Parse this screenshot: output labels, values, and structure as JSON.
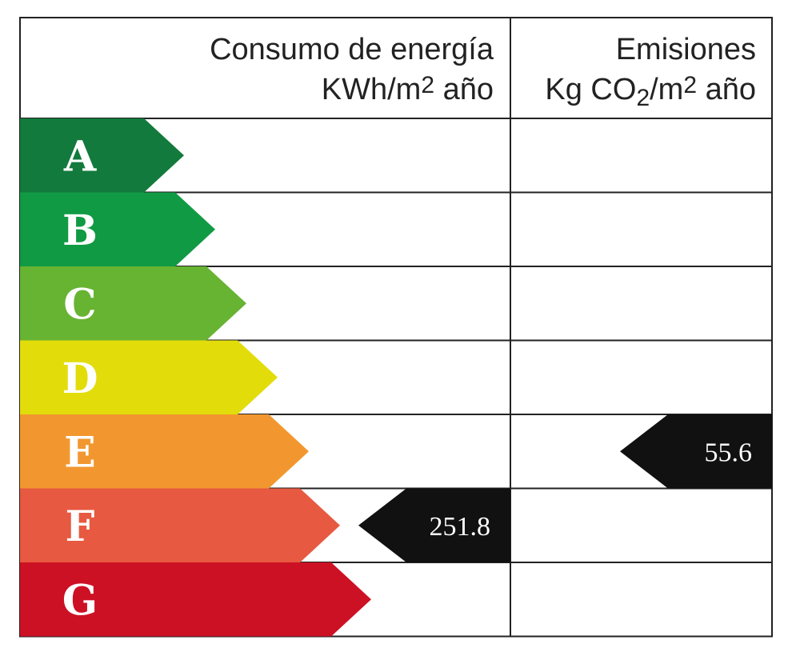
{
  "chart_data": {
    "type": "table",
    "header": {
      "consumption_title": "Consumo de energía",
      "consumption_unit_prefix": "KWh/m",
      "consumption_unit_sup": "2",
      "consumption_unit_suffix": " año",
      "emissions_title": "Emisiones",
      "emissions_unit_prefix": "Kg CO",
      "emissions_unit_sub": "2",
      "emissions_unit_mid": "/m",
      "emissions_unit_sup": "2",
      "emissions_unit_suffix": " año"
    },
    "grades": [
      {
        "letter": "A",
        "color": "#127a3c"
      },
      {
        "letter": "B",
        "color": "#119a44"
      },
      {
        "letter": "C",
        "color": "#67b332"
      },
      {
        "letter": "D",
        "color": "#e2dc0b"
      },
      {
        "letter": "E",
        "color": "#f2972f"
      },
      {
        "letter": "F",
        "color": "#e75940"
      },
      {
        "letter": "G",
        "color": "#cd1125"
      }
    ],
    "consumption": {
      "grade": "F",
      "value": "251.8"
    },
    "emissions": {
      "grade": "E",
      "value": "55.6"
    },
    "indicator_color": "#111111"
  }
}
